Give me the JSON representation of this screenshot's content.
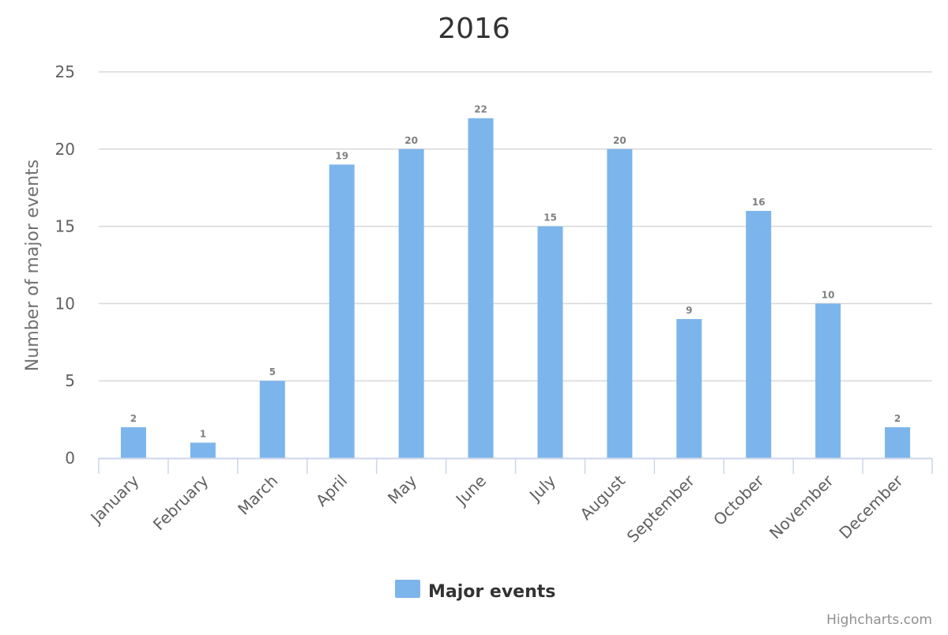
{
  "chart_data": {
    "type": "bar",
    "title": "2016",
    "ylabel": "Number of major events",
    "xlabel": "",
    "categories": [
      "January",
      "February",
      "March",
      "April",
      "May",
      "June",
      "July",
      "August",
      "September",
      "October",
      "November",
      "December"
    ],
    "series": [
      {
        "name": "Major events",
        "values": [
          2,
          1,
          5,
          19,
          20,
          22,
          15,
          20,
          9,
          16,
          10,
          2
        ],
        "color": "#7cb5ec"
      }
    ],
    "ylim": [
      0,
      25
    ],
    "yticks": [
      "0",
      "5",
      "10",
      "15",
      "20",
      "25"
    ],
    "grid": true,
    "data_labels": true,
    "legend_position": "bottom-center"
  },
  "colors": {
    "bar": "#7cb5ec",
    "grid": "#d8d8d8",
    "axis": "#ccd6eb"
  },
  "credits": "Highcharts.com"
}
